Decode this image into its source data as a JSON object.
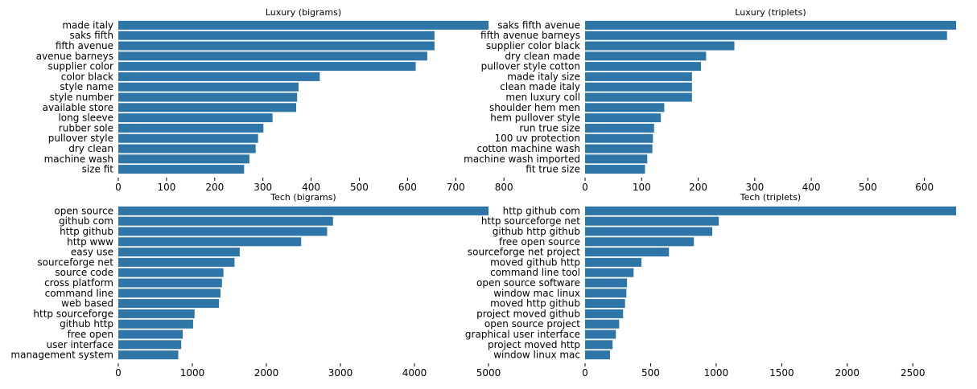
{
  "colors": {
    "bar": "#2e75a8"
  },
  "chart_data": [
    {
      "type": "bar",
      "orientation": "horizontal",
      "title": "Luxury (bigrams)",
      "categories": [
        "made italy",
        "saks fifth",
        "fifth avenue",
        "avenue barneys",
        "supplier color",
        "color black",
        "style name",
        "style number",
        "available store",
        "long sleeve",
        "rubber sole",
        "pullover style",
        "dry clean",
        "machine wash",
        "size fit"
      ],
      "values": [
        768,
        656,
        656,
        641,
        617,
        418,
        374,
        371,
        369,
        320,
        301,
        290,
        285,
        272,
        261
      ],
      "xlim": [
        0,
        768
      ],
      "xticks": [
        0,
        100,
        200,
        300,
        400,
        500,
        600,
        700,
        800
      ],
      "grid": false
    },
    {
      "type": "bar",
      "orientation": "horizontal",
      "title": "Luxury (triplets)",
      "categories": [
        "saks fifth avenue",
        "fifth avenue barneys",
        "supplier color black",
        "dry clean made",
        "pullover style cotton",
        "made italy size",
        "clean made italy",
        "men luxury coll",
        "shoulder hem men",
        "hem pullover style",
        "run true size",
        "100 uv protection",
        "cotton machine wash",
        "machine wash imported",
        "fit true size"
      ],
      "values": [
        656,
        640,
        264,
        214,
        205,
        189,
        189,
        189,
        140,
        134,
        122,
        120,
        119,
        110,
        106
      ],
      "xlim": [
        0,
        656
      ],
      "xticks": [
        0,
        100,
        200,
        300,
        400,
        500,
        600
      ],
      "grid": false
    },
    {
      "type": "bar",
      "orientation": "horizontal",
      "title": "Tech (bigrams)",
      "categories": [
        "open source",
        "github com",
        "http github",
        "http www",
        "easy use",
        "sourceforge net",
        "source code",
        "cross platform",
        "command line",
        "web based",
        "http sourceforge",
        "github http",
        "free open",
        "user interface",
        "management system"
      ],
      "values": [
        5000,
        2900,
        2820,
        2470,
        1640,
        1570,
        1420,
        1400,
        1380,
        1360,
        1030,
        1010,
        870,
        850,
        810
      ],
      "xlim": [
        0,
        5000
      ],
      "xticks": [
        0,
        1000,
        2000,
        3000,
        4000,
        5000
      ],
      "grid": false
    },
    {
      "type": "bar",
      "orientation": "horizontal",
      "title": "Tech (triplets)",
      "categories": [
        "http github com",
        "http sourceforge net",
        "github http github",
        "free open source",
        "sourceforge net project",
        "moved github http",
        "command line tool",
        "open source software",
        "window mac linux",
        "moved http github",
        "project moved github",
        "open source project",
        "graphical user interface",
        "project moved http",
        "window linux mac"
      ],
      "values": [
        2830,
        1020,
        970,
        830,
        640,
        430,
        370,
        320,
        315,
        305,
        290,
        260,
        235,
        210,
        190
      ],
      "xlim": [
        0,
        2830
      ],
      "xticks": [
        0,
        500,
        1000,
        1500,
        2000,
        2500
      ],
      "grid": false
    }
  ]
}
